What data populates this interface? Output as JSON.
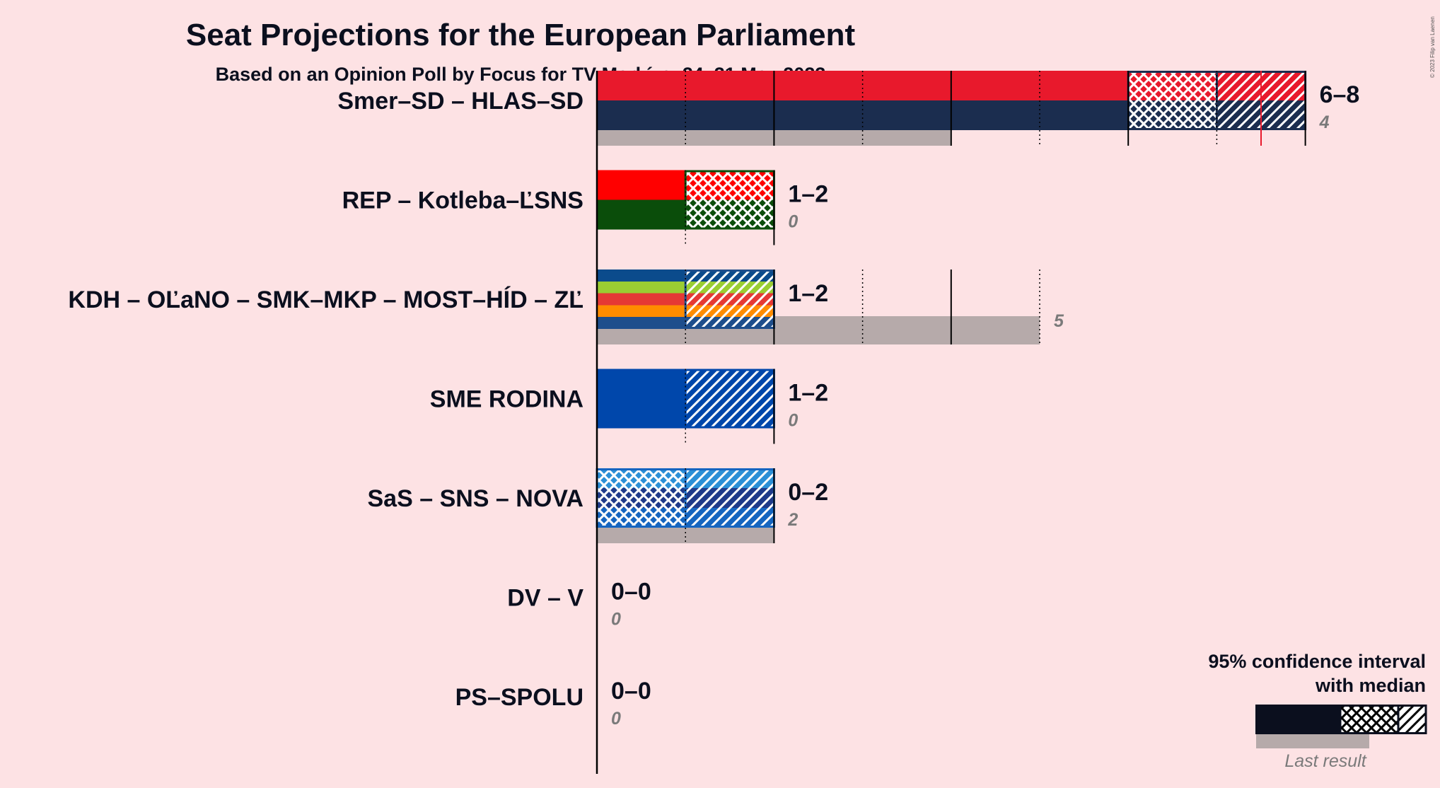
{
  "chart_data": {
    "type": "bar",
    "title": "Seat Projections for the European Parliament",
    "subtitle": "Based on an Opinion Poll by Focus for TV Markíza, 24–31 May 2023",
    "copyright": "© 2023 Filip van Laenen",
    "xlim": [
      0,
      8
    ],
    "categories": [
      "Smer–SD – HLAS–SD",
      "REP – Kotleba–ĽSNS",
      "KDH – OĽaNO – SMK–MKP – MOST–HÍD – ZĽ",
      "SME RODINA",
      "SaS – SNS – NOVA",
      "DV – V",
      "PS–SPOLU"
    ],
    "series": [
      {
        "name": "95% confidence interval",
        "values": [
          {
            "low": 6,
            "q1": 6,
            "median": 7,
            "q3": 8,
            "high": 8,
            "range_label": "6–8",
            "last_result": 4,
            "last_label": "4"
          },
          {
            "low": 1,
            "q1": 1,
            "median": 2,
            "q3": 2,
            "high": 2,
            "range_label": "1–2",
            "last_result": 0,
            "last_label": "0"
          },
          {
            "low": 1,
            "q1": 1,
            "median": 1,
            "q3": 2,
            "high": 2,
            "range_label": "1–2",
            "last_result": 5,
            "last_label": "5"
          },
          {
            "low": 1,
            "q1": 1,
            "median": 1,
            "q3": 2,
            "high": 2,
            "range_label": "1–2",
            "last_result": 0,
            "last_label": "0"
          },
          {
            "low": 0,
            "q1": 0,
            "median": 1,
            "q3": 2,
            "high": 2,
            "range_label": "0–2",
            "last_result": 2,
            "last_label": "2"
          },
          {
            "low": 0,
            "q1": 0,
            "median": 0,
            "q3": 0,
            "high": 0,
            "range_label": "0–0",
            "last_result": 0,
            "last_label": "0"
          },
          {
            "low": 0,
            "q1": 0,
            "median": 0,
            "q3": 0,
            "high": 0,
            "range_label": "0–0",
            "last_result": 0,
            "last_label": "0"
          }
        ]
      }
    ],
    "party_colors": [
      [
        "#e8192c",
        "#1b2d4f"
      ],
      [
        "#ff0000",
        "#0a4d0a"
      ],
      [
        "#0b4b8c",
        "#9acd32",
        "#e53935",
        "#ff8c00",
        "#1e4e8c"
      ],
      [
        "#0047ab"
      ],
      [
        "#2b8fd6",
        "#1e3a8a",
        "#1565c0"
      ],
      [],
      []
    ],
    "median_line_color": "#e8192c",
    "last_result_color": "#b6aaaa",
    "background": "#fde2e4",
    "legend": {
      "title_line1": "95% confidence interval",
      "title_line2": "with median",
      "last_result_label": "Last result",
      "placement": "bottom-right"
    }
  }
}
